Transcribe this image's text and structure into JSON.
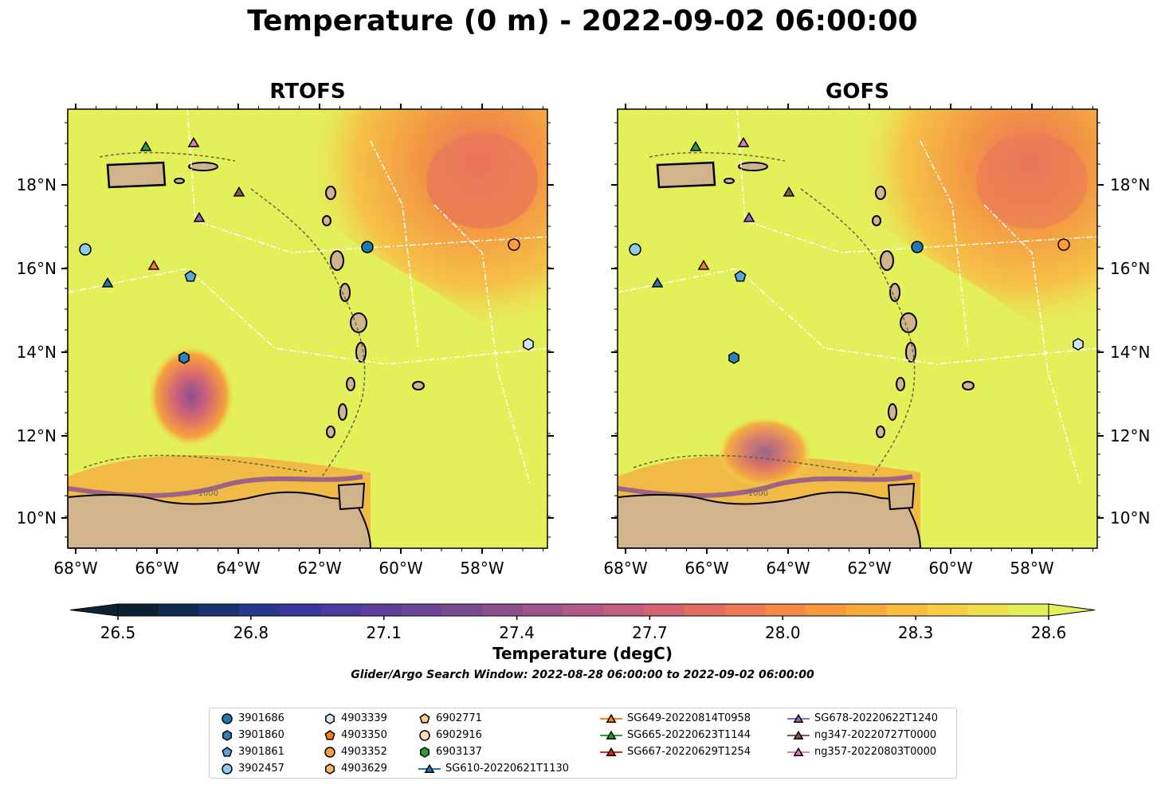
{
  "title": "Temperature (0 m) - 2022-09-02 06:00:00",
  "panels": [
    {
      "title": "RTOFS"
    },
    {
      "title": "GOFS"
    }
  ],
  "lon_ticks": [
    "68°W",
    "66°W",
    "64°W",
    "62°W",
    "60°W",
    "58°W"
  ],
  "lat_ticks": [
    "18°N",
    "16°N",
    "14°N",
    "12°N",
    "10°N"
  ],
  "contour_label": "-1000",
  "colorbar": {
    "label": "Temperature (degC)",
    "ticks": [
      "26.5",
      "26.8",
      "27.1",
      "27.4",
      "27.7",
      "28.0",
      "28.3",
      "28.6"
    ],
    "colors": [
      "#0c2233",
      "#112a4f",
      "#1a3270",
      "#27378c",
      "#38369e",
      "#4b3a9f",
      "#5c3f99",
      "#6c4596",
      "#7b4b92",
      "#8d508f",
      "#9f558b",
      "#b15a86",
      "#c25e7e",
      "#d46574",
      "#e16e63",
      "#ec7a52",
      "#f38a47",
      "#f69a40",
      "#f8ab3c",
      "#f8bc3e",
      "#f6cd44",
      "#eee04f",
      "#e4f05a"
    ]
  },
  "search_window": "Glider/Argo Search Window: 2022-08-28 06:00:00 to 2022-09-02 06:00:00",
  "legend": {
    "columns": [
      [
        {
          "label": "3901686",
          "marker": "circle",
          "color": "#1f77b4"
        },
        {
          "label": "3901860",
          "marker": "hexagon",
          "color": "#2f7fb8"
        },
        {
          "label": "3901861",
          "marker": "pentagon",
          "color": "#5aa6d9"
        },
        {
          "label": "3902457",
          "marker": "circle",
          "color": "#8ec9ef"
        }
      ],
      [
        {
          "label": "4903339",
          "marker": "hexagon",
          "color": "#cfe8fa"
        },
        {
          "label": "4903350",
          "marker": "pentagon",
          "color": "#ff7f0e"
        },
        {
          "label": "4903352",
          "marker": "circle",
          "color": "#ff9a3c"
        },
        {
          "label": "4903629",
          "marker": "hexagon",
          "color": "#ffb068"
        }
      ],
      [
        {
          "label": "6902771",
          "marker": "pentagon",
          "color": "#ffc895"
        },
        {
          "label": "6902916",
          "marker": "circle",
          "color": "#ffdcbc"
        },
        {
          "label": "6903137",
          "marker": "hexagon",
          "color": "#2ca02c"
        },
        {
          "label": "SG610-20220621T1130",
          "marker": "triangle",
          "color": "#1f77b4",
          "line": true
        }
      ],
      [
        {
          "label": "SG649-20220814T0958",
          "marker": "triangle",
          "color": "#ff7f0e",
          "line": true
        },
        {
          "label": "SG665-20220623T1144",
          "marker": "triangle",
          "color": "#2ca02c",
          "line": true
        },
        {
          "label": "SG667-20220629T1254",
          "marker": "triangle",
          "color": "#d62728",
          "line": true
        }
      ],
      [
        {
          "label": "SG678-20220622T1240",
          "marker": "triangle",
          "color": "#9467bd",
          "line": true
        },
        {
          "label": "ng347-20220727T0000",
          "marker": "triangle",
          "color": "#8c564b",
          "line": true
        },
        {
          "label": "ng357-20220803T0000",
          "marker": "triangle",
          "color": "#e377c2",
          "line": true
        }
      ]
    ]
  },
  "colors": {
    "land": "#d2b48c",
    "water_high": "#e4f05a",
    "warm": "#f6a33c",
    "cool": "#8b4f92"
  }
}
